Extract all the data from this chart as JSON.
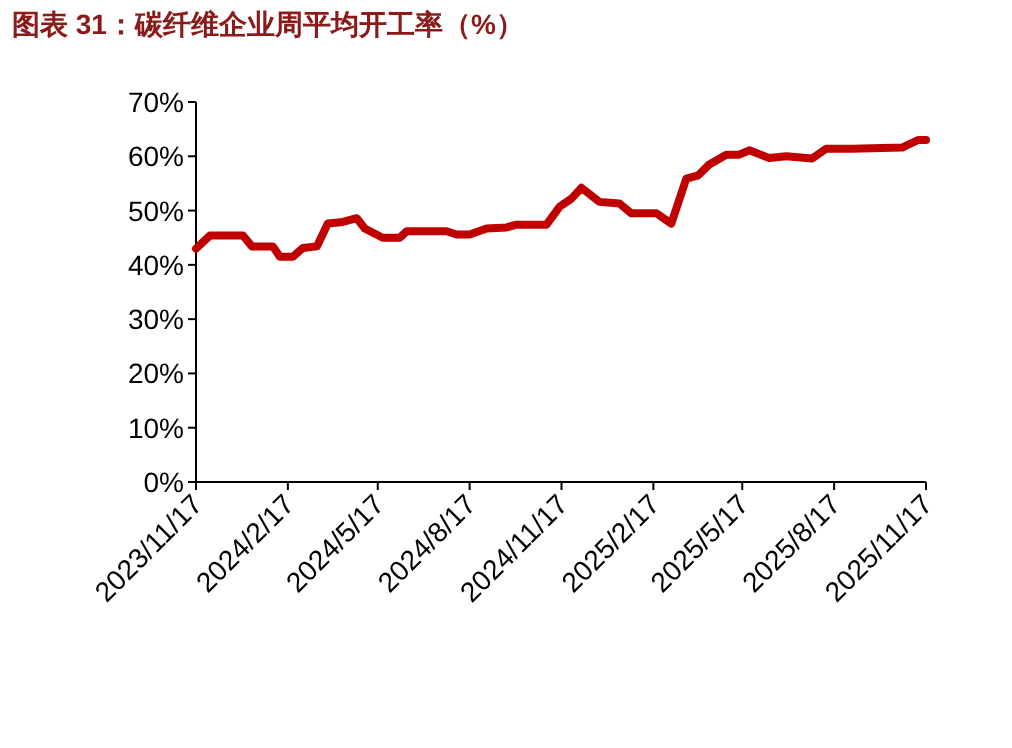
{
  "chart_data": {
    "type": "line",
    "title": "图表 31：碳纤维企业周平均开工率（%）",
    "x": [
      "2023-11-17",
      "2023-12-01",
      "2024-01-03",
      "2024-01-12",
      "2024-02-02",
      "2024-02-09",
      "2024-02-22",
      "2024-03-03",
      "2024-03-17",
      "2024-03-28",
      "2024-04-12",
      "2024-04-26",
      "2024-05-04",
      "2024-05-22",
      "2024-06-08",
      "2024-06-15",
      "2024-07-25",
      "2024-08-04",
      "2024-08-17",
      "2024-09-03",
      "2024-09-23",
      "2024-10-03",
      "2024-11-02",
      "2024-11-15",
      "2024-11-27",
      "2024-12-07",
      "2024-12-25",
      "2025-01-14",
      "2025-01-26",
      "2025-02-20",
      "2025-03-07",
      "2025-03-22",
      "2025-04-03",
      "2025-04-14",
      "2025-05-01",
      "2025-05-14",
      "2025-05-24",
      "2025-06-13",
      "2025-06-30",
      "2025-07-26",
      "2025-08-09",
      "2025-09-04",
      "2025-10-24",
      "2025-11-09",
      "2025-11-17"
    ],
    "series": [
      {
        "color": "#c00000",
        "values": [
          43.0,
          45.4,
          45.4,
          43.4,
          43.4,
          41.5,
          41.5,
          43.1,
          43.4,
          47.6,
          47.9,
          48.6,
          46.7,
          45.0,
          45.0,
          46.2,
          46.2,
          45.6,
          45.6,
          46.7,
          46.9,
          47.4,
          47.4,
          50.7,
          52.2,
          54.2,
          51.6,
          51.3,
          49.5,
          49.5,
          47.6,
          55.9,
          56.5,
          58.5,
          60.3,
          60.3,
          61.1,
          59.7,
          60.0,
          59.6,
          61.4,
          61.4,
          61.6,
          63.0,
          63.0
        ]
      }
    ],
    "xlim": [
      "2023-11-17",
      "2025-11-17"
    ],
    "xticks": [
      {
        "value": "2023-11-17",
        "label": "2023/11/17"
      },
      {
        "value": "2024-02-17",
        "label": "2024/2/17"
      },
      {
        "value": "2024-05-17",
        "label": "2024/5/17"
      },
      {
        "value": "2024-08-17",
        "label": "2024/8/17"
      },
      {
        "value": "2024-11-17",
        "label": "2024/11/17"
      },
      {
        "value": "2025-02-17",
        "label": "2025/2/17"
      },
      {
        "value": "2025-05-17",
        "label": "2025/5/17"
      },
      {
        "value": "2025-08-17",
        "label": "2025/8/17"
      },
      {
        "value": "2025-11-17",
        "label": "2025/11/17"
      }
    ],
    "ylim": [
      0,
      70
    ],
    "yticks": [
      {
        "value": 0,
        "label": "0%"
      },
      {
        "value": 10,
        "label": "10%"
      },
      {
        "value": 20,
        "label": "20%"
      },
      {
        "value": 30,
        "label": "30%"
      },
      {
        "value": 40,
        "label": "40%"
      },
      {
        "value": 50,
        "label": "50%"
      },
      {
        "value": 60,
        "label": "60%"
      },
      {
        "value": 70,
        "label": "70%"
      }
    ],
    "grid": false,
    "marker": "none",
    "line_style": "solid"
  }
}
